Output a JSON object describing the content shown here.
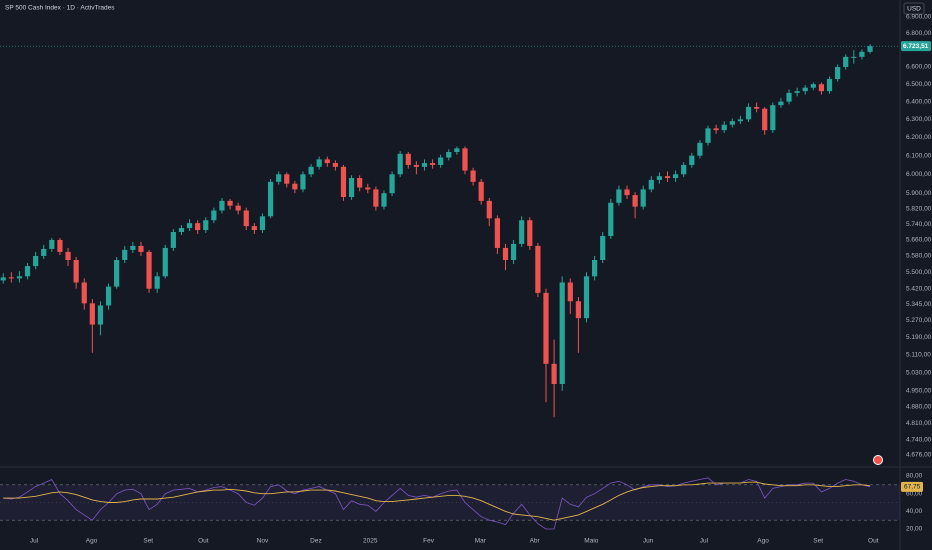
{
  "chart_data": {
    "type": "candlestick",
    "title": "SP 500 Cash Index · 1D · ActivTrades",
    "currency": "USD",
    "log_scale": true,
    "grid": false,
    "up_color": "#26a69a",
    "down_color": "#ef5350",
    "xlim": [
      -0.4,
      110.7
    ],
    "xticks": [
      {
        "value": 3.8,
        "label": "Jul"
      },
      {
        "value": 10.9,
        "label": "Ago"
      },
      {
        "value": 17.9,
        "label": "Set"
      },
      {
        "value": 24.7,
        "label": "Out"
      },
      {
        "value": 32,
        "label": "Nov"
      },
      {
        "value": 38.6,
        "label": "Dez"
      },
      {
        "value": 45.3,
        "label": "2025"
      },
      {
        "value": 52.5,
        "label": "Fev"
      },
      {
        "value": 58.9,
        "label": "Mar"
      },
      {
        "value": 65.6,
        "label": "Abr"
      },
      {
        "value": 72.6,
        "label": "Maio"
      },
      {
        "value": 79.6,
        "label": "Jun"
      },
      {
        "value": 86.5,
        "label": "Jul"
      },
      {
        "value": 93.8,
        "label": "Ago"
      },
      {
        "value": 100.6,
        "label": "Set"
      },
      {
        "value": 107.4,
        "label": "Out"
      }
    ],
    "ylim": [
      4630,
      7005
    ],
    "yticks": [
      {
        "value": 6900,
        "label": "6.900,00"
      },
      {
        "value": 6800,
        "label": "6.800,00"
      },
      {
        "value": 6600,
        "label": "6.600,00"
      },
      {
        "value": 6500,
        "label": "6.500,00"
      },
      {
        "value": 6400,
        "label": "6.400,00"
      },
      {
        "value": 6300,
        "label": "6.300,00"
      },
      {
        "value": 6200,
        "label": "6.200,00"
      },
      {
        "value": 6100,
        "label": "6.100,00"
      },
      {
        "value": 6000,
        "label": "6.000,00"
      },
      {
        "value": 5900,
        "label": "5.900,00"
      },
      {
        "value": 5820,
        "label": "5.820,00"
      },
      {
        "value": 5740,
        "label": "5.740,00"
      },
      {
        "value": 5660,
        "label": "5.660,00"
      },
      {
        "value": 5580,
        "label": "5.580,00"
      },
      {
        "value": 5500,
        "label": "5.500,00"
      },
      {
        "value": 5420,
        "label": "5.420,00"
      },
      {
        "value": 5345,
        "label": "5.345,00"
      },
      {
        "value": 5270,
        "label": "5.270,00"
      },
      {
        "value": 5190,
        "label": "5.190,00"
      },
      {
        "value": 5110,
        "label": "5.110,00"
      },
      {
        "value": 5030,
        "label": "5.030,00"
      },
      {
        "value": 4950,
        "label": "4.950,00"
      },
      {
        "value": 4880,
        "label": "4.880,00"
      },
      {
        "value": 4810,
        "label": "4.810,00"
      },
      {
        "value": 4740,
        "label": "4.740,00"
      },
      {
        "value": 4676,
        "label": "4.676,00"
      }
    ],
    "candles": {
      "open": [
        5460,
        5475,
        5470,
        5480,
        5530,
        5580,
        5615,
        5660,
        5600,
        5560,
        5450,
        5350,
        5250,
        5340,
        5430,
        5560,
        5610,
        5630,
        5600,
        5420,
        5480,
        5620,
        5700,
        5720,
        5745,
        5710,
        5760,
        5810,
        5860,
        5835,
        5810,
        5730,
        5710,
        5780,
        5960,
        6000,
        5950,
        5920,
        6000,
        6040,
        6080,
        6060,
        6040,
        5880,
        5980,
        5930,
        5920,
        5830,
        5900,
        6000,
        6110,
        6050,
        6040,
        6060,
        6050,
        6090,
        6120,
        6140,
        6020,
        5960,
        5860,
        5770,
        5620,
        5560,
        5640,
        5760,
        5630,
        5400,
        5070,
        4980,
        5450,
        5360,
        5280,
        5480,
        5560,
        5680,
        5850,
        5920,
        5890,
        5830,
        5920,
        5970,
        5990,
        5980,
        6000,
        6050,
        6100,
        6170,
        6250,
        6240,
        6270,
        6290,
        6300,
        6370,
        6360,
        6240,
        6380,
        6400,
        6450,
        6460,
        6480,
        6500,
        6460,
        6530,
        6600,
        6660,
        6660,
        6690
      ],
      "high": [
        5495,
        5500,
        5505,
        5545,
        5600,
        5635,
        5670,
        5670,
        5620,
        5575,
        5470,
        5370,
        5360,
        5445,
        5575,
        5630,
        5650,
        5650,
        5610,
        5500,
        5635,
        5715,
        5735,
        5765,
        5760,
        5775,
        5825,
        5875,
        5870,
        5850,
        5825,
        5745,
        5795,
        5975,
        6015,
        6010,
        5965,
        6015,
        6055,
        6095,
        6095,
        6075,
        6050,
        5995,
        5995,
        5950,
        5935,
        5915,
        6015,
        6125,
        6120,
        6070,
        6080,
        6080,
        6105,
        6135,
        6150,
        6150,
        6035,
        5975,
        5875,
        5785,
        5640,
        5660,
        5780,
        5775,
        5645,
        5420,
        5180,
        5480,
        5470,
        5380,
        5500,
        5580,
        5700,
        5870,
        5940,
        5940,
        5905,
        5940,
        5990,
        6010,
        6015,
        6020,
        6065,
        6115,
        6185,
        6265,
        6270,
        6290,
        6305,
        6320,
        6390,
        6395,
        6370,
        6395,
        6420,
        6470,
        6480,
        6495,
        6510,
        6510,
        6545,
        6615,
        6675,
        6700,
        6705,
        6735
      ],
      "low": [
        5445,
        5450,
        5450,
        5465,
        5515,
        5565,
        5600,
        5585,
        5530,
        5420,
        5320,
        5120,
        5200,
        5320,
        5420,
        5545,
        5595,
        5580,
        5400,
        5400,
        5470,
        5605,
        5685,
        5705,
        5690,
        5695,
        5745,
        5795,
        5815,
        5790,
        5710,
        5690,
        5695,
        5770,
        5945,
        5930,
        5900,
        5905,
        5985,
        6025,
        6040,
        6020,
        5860,
        5865,
        5910,
        5900,
        5810,
        5815,
        5885,
        5985,
        6030,
        6000,
        6020,
        6030,
        6035,
        6075,
        6105,
        6000,
        5940,
        5840,
        5730,
        5590,
        5510,
        5540,
        5625,
        5610,
        5380,
        4900,
        4835,
        4950,
        5300,
        5120,
        5260,
        5460,
        5545,
        5665,
        5835,
        5870,
        5770,
        5815,
        5905,
        5950,
        5960,
        5960,
        5985,
        6035,
        6085,
        6155,
        6220,
        6225,
        6255,
        6275,
        6285,
        6340,
        6215,
        6225,
        6365,
        6385,
        6430,
        6440,
        6465,
        6440,
        6445,
        6515,
        6585,
        6620,
        6645,
        6680
      ],
      "close": [
        5475,
        5470,
        5480,
        5530,
        5580,
        5615,
        5660,
        5600,
        5560,
        5450,
        5350,
        5250,
        5340,
        5430,
        5560,
        5610,
        5630,
        5600,
        5420,
        5480,
        5620,
        5700,
        5720,
        5745,
        5710,
        5760,
        5810,
        5860,
        5835,
        5810,
        5730,
        5710,
        5780,
        5960,
        6000,
        5950,
        5920,
        6000,
        6040,
        6080,
        6060,
        6040,
        5880,
        5980,
        5930,
        5920,
        5830,
        5900,
        6000,
        6110,
        6050,
        6040,
        6060,
        6050,
        6090,
        6120,
        6140,
        6020,
        5960,
        5860,
        5770,
        5620,
        5560,
        5640,
        5760,
        5630,
        5400,
        5070,
        4980,
        5450,
        5360,
        5280,
        5480,
        5560,
        5680,
        5850,
        5920,
        5890,
        5830,
        5920,
        5970,
        5990,
        5980,
        6000,
        6050,
        6100,
        6170,
        6250,
        6240,
        6270,
        6290,
        6300,
        6370,
        6360,
        6240,
        6380,
        6400,
        6450,
        6460,
        6480,
        6500,
        6460,
        6530,
        6600,
        6660,
        6660,
        6690,
        6723.51
      ],
      "last_close_label": "6.723,51"
    },
    "rsi": {
      "color": "#7e57c2",
      "ma_color": "#e0b54c",
      "ylim": [
        15.5,
        86.8
      ],
      "yticks": [
        {
          "value": 80,
          "label": "80,00"
        },
        {
          "value": 60,
          "label": "60,00"
        },
        {
          "value": 40,
          "label": "40,00"
        },
        {
          "value": 20,
          "label": "20,00"
        }
      ],
      "upper_band": 70,
      "middle_band": 50,
      "lower_band": 30,
      "values": [
        55,
        54,
        56,
        62,
        68,
        72,
        76,
        60,
        52,
        42,
        36,
        30,
        42,
        50,
        60,
        64,
        65,
        60,
        42,
        48,
        60,
        64,
        65,
        66,
        62,
        64,
        67,
        68,
        64,
        60,
        50,
        47,
        55,
        68,
        70,
        63,
        60,
        64,
        66,
        68,
        64,
        60,
        42,
        52,
        48,
        47,
        40,
        50,
        58,
        66,
        58,
        56,
        58,
        56,
        60,
        63,
        64,
        50,
        42,
        34,
        30,
        28,
        25,
        38,
        48,
        36,
        26,
        20,
        20,
        55,
        48,
        45,
        56,
        60,
        66,
        72,
        74,
        70,
        64,
        68,
        70,
        70,
        68,
        69,
        72,
        74,
        76,
        78,
        70,
        72,
        72,
        72,
        76,
        74,
        55,
        66,
        68,
        70,
        70,
        72,
        72,
        62,
        66,
        72,
        76,
        74,
        70,
        67.75
      ],
      "ma": [
        55,
        55,
        55,
        56,
        57,
        59,
        61,
        62,
        61,
        59,
        56,
        53,
        51,
        50,
        50,
        51,
        53,
        54,
        54,
        54,
        55,
        56,
        58,
        60,
        62,
        63,
        64,
        64,
        65,
        64,
        63,
        61,
        60,
        60,
        61,
        62,
        62,
        63,
        64,
        64,
        64,
        63,
        61,
        59,
        57,
        55,
        52,
        51,
        51,
        52,
        53,
        54,
        55,
        56,
        57,
        58,
        58,
        57,
        55,
        52,
        48,
        44,
        40,
        37,
        36,
        35,
        34,
        32,
        30,
        32,
        34,
        36,
        40,
        44,
        48,
        53,
        58,
        62,
        65,
        67,
        68,
        69,
        69,
        69,
        70,
        70,
        71,
        72,
        72,
        72,
        72,
        72,
        73,
        73,
        71,
        70,
        69,
        69,
        69,
        70,
        70,
        69,
        68,
        68,
        69,
        70,
        70,
        69
      ],
      "last_label": "67,75"
    }
  }
}
